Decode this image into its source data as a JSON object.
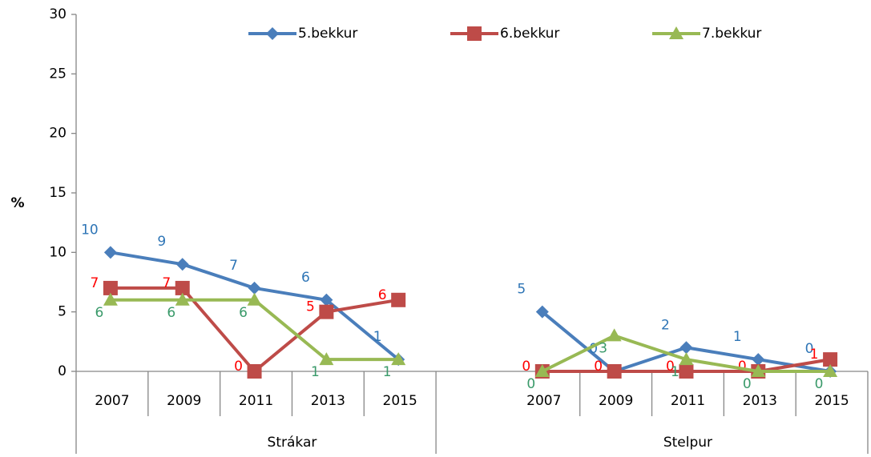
{
  "chart_data": {
    "type": "line",
    "ylabel": "%",
    "categories": [
      "2007",
      "2009",
      "2011",
      "2013",
      "2015",
      null,
      "2007",
      "2009",
      "2011",
      "2013",
      "2015"
    ],
    "groups": [
      "Strákar",
      "Stelpur"
    ],
    "series": [
      {
        "name": "5.bekkur",
        "color": "#4a7ebb",
        "label_color": "#2e75b6",
        "marker": "diamond",
        "values": [
          10,
          9,
          7,
          6,
          1,
          null,
          5,
          0,
          2,
          1,
          0
        ]
      },
      {
        "name": "6.bekkur",
        "color": "#be4b48",
        "label_color": "#ff0000",
        "marker": "square",
        "values": [
          7,
          7,
          0,
          5,
          6,
          null,
          0,
          0,
          0,
          0,
          1
        ]
      },
      {
        "name": "7.bekkur",
        "color": "#98b954",
        "label_color": "#3a9a6a",
        "marker": "triangle",
        "values": [
          6,
          6,
          6,
          1,
          1,
          null,
          0,
          3,
          1,
          0,
          0
        ]
      }
    ],
    "ylim": [
      0,
      30
    ],
    "yticks": [
      0,
      5,
      10,
      15,
      20,
      25,
      30
    ]
  }
}
